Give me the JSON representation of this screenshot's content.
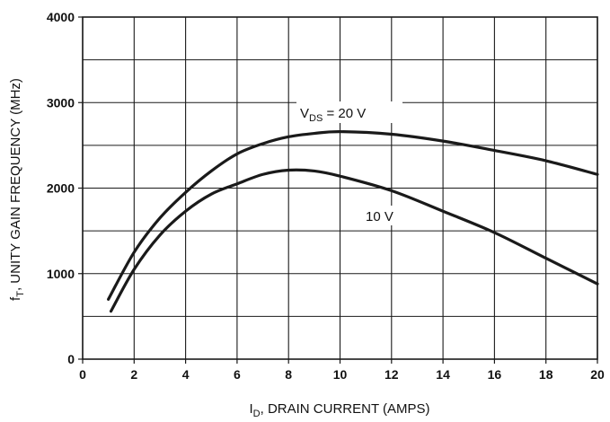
{
  "chart_data": {
    "type": "line",
    "title": "",
    "xlabel": {
      "main": "I",
      "sub": "D",
      "rest": ", DRAIN CURRENT (AMPS)"
    },
    "ylabel": {
      "main": "f",
      "sub": "T",
      "rest": ", UNITY GAIN FREQUENCY (MHz)"
    },
    "xlim": [
      0,
      20
    ],
    "ylim": [
      0,
      4000
    ],
    "x_ticks": [
      0,
      2,
      4,
      6,
      8,
      10,
      12,
      14,
      16,
      18,
      20
    ],
    "x_tick_labels": [
      "0",
      "2",
      "4",
      "6",
      "8",
      "10",
      "12",
      "14",
      "16",
      "18",
      "20"
    ],
    "y_ticks": [
      0,
      1000,
      2000,
      3000,
      4000
    ],
    "y_tick_labels": [
      "0",
      "1000",
      "2000",
      "3000",
      "4000"
    ],
    "x_grid_step": 2,
    "y_grid_step": 500,
    "grid": true,
    "legend": "none",
    "series": [
      {
        "label_main": "V",
        "label_sub": "DS",
        "label_rest": " = 20 V",
        "x": [
          1,
          2,
          3,
          4,
          5,
          6,
          7,
          8,
          9,
          10,
          12,
          14,
          16,
          18,
          20
        ],
        "y": [
          700,
          1250,
          1650,
          1950,
          2200,
          2400,
          2520,
          2600,
          2640,
          2660,
          2630,
          2550,
          2440,
          2320,
          2160
        ]
      },
      {
        "label_main": "10 V",
        "label_sub": "",
        "label_rest": "",
        "x": [
          1.1,
          2,
          3,
          4,
          5,
          6,
          7,
          8,
          9,
          10,
          12,
          14,
          16,
          18,
          20
        ],
        "y": [
          560,
          1050,
          1450,
          1730,
          1930,
          2050,
          2160,
          2210,
          2200,
          2140,
          1970,
          1730,
          1480,
          1180,
          880
        ]
      }
    ],
    "colors": {
      "curve": "#1a1a1a",
      "grid": "#1a1a1a",
      "text": "#111111"
    }
  }
}
